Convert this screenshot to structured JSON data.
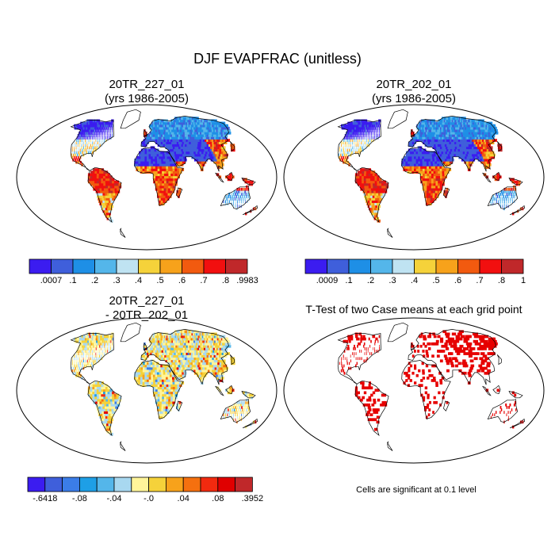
{
  "figure": {
    "title": "DJF EVAPFRAC (unitless)"
  },
  "panels": [
    {
      "id": "p1",
      "title_line1": "20TR_227_01",
      "title_line2": "(yrs 1986-2005)",
      "field": "case1"
    },
    {
      "id": "p2",
      "title_line1": "20TR_202_01",
      "title_line2": "(yrs 1986-2005)",
      "field": "case2"
    },
    {
      "id": "p3",
      "title_line1": "20TR_227_01",
      "title_line2": "- 20TR_202_01",
      "field": "diff"
    },
    {
      "id": "p4",
      "title_line1": "T-Test of two Case means at each grid point",
      "title_line2": "",
      "field": "ttest"
    }
  ],
  "colorbars": {
    "case1": {
      "labels": [
        ".0007",
        ".1",
        ".2",
        ".3",
        ".4",
        ".5",
        ".6",
        ".7",
        ".8",
        ".9983"
      ],
      "colors": [
        "#3b1cf0",
        "#3f5fdb",
        "#1e8fe6",
        "#54b6ea",
        "#bfe3f2",
        "#f5d23a",
        "#f7a21b",
        "#f25a0f",
        "#f20f0f",
        "#c0282a"
      ]
    },
    "case2": {
      "labels": [
        ".0009",
        ".1",
        ".2",
        ".3",
        ".4",
        ".5",
        ".6",
        ".7",
        ".8",
        "1"
      ],
      "colors": [
        "#3b1cf0",
        "#3f5fdb",
        "#1e8fe6",
        "#54b6ea",
        "#bfe3f2",
        "#f5d23a",
        "#f7a21b",
        "#f25a0f",
        "#f20f0f",
        "#c0282a"
      ]
    },
    "diff": {
      "labels": [
        "-.6418",
        "-.08",
        "-.04",
        "-.0",
        ".04",
        ".08",
        ".3952"
      ],
      "label_slots": [
        0,
        2,
        4,
        6,
        8,
        10,
        12
      ],
      "colors": [
        "#3b1cf0",
        "#3f5fdb",
        "#3b7de8",
        "#1e9fe6",
        "#54b6ea",
        "#a8d8f0",
        "#fff59a",
        "#f5d23a",
        "#f7a21b",
        "#f5700f",
        "#f22a0f",
        "#e00000",
        "#c0282a"
      ]
    }
  },
  "significance_note": "Cells are significant at 0.1 level",
  "ttest_color": "#e60000"
}
